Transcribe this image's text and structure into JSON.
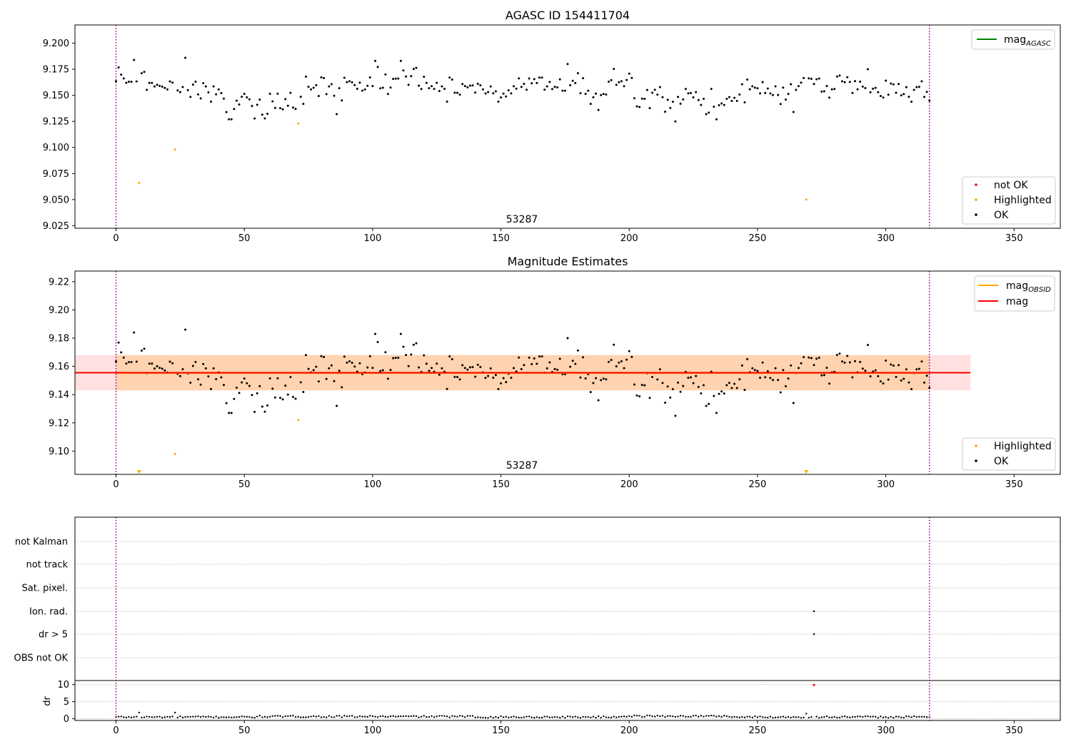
{
  "chart_data": [
    {
      "type": "scatter",
      "title": "AGASC ID 154411704",
      "annotation": "53287",
      "xlim": [
        -16,
        368
      ],
      "ylim": [
        9.0225,
        9.2175
      ],
      "x_ticks": [
        0,
        50,
        100,
        150,
        200,
        250,
        300,
        350
      ],
      "y_ticks": [
        9.025,
        9.05,
        9.075,
        9.1,
        9.125,
        9.15,
        9.175,
        9.2
      ],
      "y_tick_labels": [
        "9.025",
        "9.050",
        "9.075",
        "9.100",
        "9.125",
        "9.150",
        "9.175",
        "9.200"
      ],
      "vlines": [
        0,
        317
      ],
      "line_legend": [
        {
          "label": "mag",
          "sub": "AGASC",
          "color": "#008000"
        }
      ],
      "point_legend": [
        {
          "label": "not OK",
          "color": "#ff0000"
        },
        {
          "label": "Highlighted",
          "color": "#ffa500"
        },
        {
          "label": "OK",
          "color": "#000000"
        }
      ],
      "highlighted": [
        [
          9,
          9.066
        ],
        [
          23,
          9.098
        ],
        [
          71,
          9.123
        ],
        [
          269,
          9.05
        ]
      ],
      "ok_profile": [
        [
          0,
          9.175
        ],
        [
          5,
          9.168
        ],
        [
          10,
          9.17
        ],
        [
          15,
          9.16
        ],
        [
          20,
          9.158
        ],
        [
          25,
          9.162
        ],
        [
          30,
          9.156
        ],
        [
          35,
          9.152
        ],
        [
          40,
          9.145
        ],
        [
          45,
          9.138
        ],
        [
          50,
          9.142
        ],
        [
          55,
          9.14
        ],
        [
          60,
          9.141
        ],
        [
          65,
          9.138
        ],
        [
          70,
          9.143
        ],
        [
          75,
          9.157
        ],
        [
          80,
          9.16
        ],
        [
          85,
          9.152
        ],
        [
          90,
          9.156
        ],
        [
          95,
          9.162
        ],
        [
          100,
          9.163
        ],
        [
          105,
          9.162
        ],
        [
          110,
          9.168
        ],
        [
          115,
          9.17
        ],
        [
          120,
          9.163
        ],
        [
          125,
          9.16
        ],
        [
          130,
          9.158
        ],
        [
          135,
          9.16
        ],
        [
          140,
          9.158
        ],
        [
          145,
          9.155
        ],
        [
          150,
          9.152
        ],
        [
          155,
          9.16
        ],
        [
          160,
          9.165
        ],
        [
          165,
          9.165
        ],
        [
          170,
          9.16
        ],
        [
          175,
          9.157
        ],
        [
          180,
          9.162
        ],
        [
          185,
          9.15
        ],
        [
          190,
          9.155
        ],
        [
          195,
          9.162
        ],
        [
          200,
          9.16
        ],
        [
          205,
          9.145
        ],
        [
          210,
          9.15
        ],
        [
          215,
          9.138
        ],
        [
          220,
          9.147
        ],
        [
          225,
          9.148
        ],
        [
          230,
          9.148
        ],
        [
          235,
          9.142
        ],
        [
          240,
          9.148
        ],
        [
          245,
          9.152
        ],
        [
          250,
          9.156
        ],
        [
          255,
          9.155
        ],
        [
          260,
          9.152
        ],
        [
          265,
          9.16
        ],
        [
          270,
          9.165
        ],
        [
          275,
          9.158
        ],
        [
          280,
          9.162
        ],
        [
          285,
          9.164
        ],
        [
          290,
          9.16
        ],
        [
          295,
          9.157
        ],
        [
          300,
          9.155
        ],
        [
          305,
          9.152
        ],
        [
          310,
          9.158
        ],
        [
          317,
          9.155
        ]
      ],
      "ok_extremes": [
        [
          7,
          9.184
        ],
        [
          27,
          9.186
        ],
        [
          101,
          9.183
        ],
        [
          111,
          9.183
        ],
        [
          44,
          9.127
        ],
        [
          45,
          9.127
        ],
        [
          218,
          9.125
        ],
        [
          234,
          9.127
        ],
        [
          230,
          9.132
        ],
        [
          86,
          9.132
        ],
        [
          176,
          9.18
        ],
        [
          264,
          9.134
        ],
        [
          188,
          9.136
        ]
      ]
    },
    {
      "type": "scatter",
      "title": "Magnitude Estimates",
      "annotation": "53287",
      "xlim": [
        -16,
        368
      ],
      "ylim": [
        9.0835,
        9.2275
      ],
      "x_ticks": [
        0,
        50,
        100,
        150,
        200,
        250,
        300,
        350
      ],
      "y_ticks": [
        9.1,
        9.12,
        9.14,
        9.16,
        9.18,
        9.2,
        9.22
      ],
      "y_tick_labels": [
        "9.10",
        "9.12",
        "9.14",
        "9.16",
        "9.18",
        "9.20",
        "9.22"
      ],
      "vlines": [
        0,
        317
      ],
      "mag": 9.1555,
      "mag_band": [
        9.143,
        9.168
      ],
      "mag_obsid": 9.1552,
      "mag_obsid_band": [
        9.143,
        9.168
      ],
      "line_legend": [
        {
          "label": "mag",
          "sub": "OBSID",
          "color": "#ffa500"
        },
        {
          "label": "mag",
          "sub": "",
          "color": "#ff0000"
        }
      ],
      "point_legend": [
        {
          "label": "Highlighted",
          "color": "#ffa500"
        },
        {
          "label": "OK",
          "color": "#000000"
        }
      ],
      "highlighted": [
        [
          23,
          9.098
        ],
        [
          71,
          9.122
        ]
      ],
      "lower_limit_markers": [
        9,
        269
      ]
    },
    {
      "type": "scatter",
      "flag_rows": [
        "not Kalman",
        "not track",
        "Sat. pixel.",
        "Ion. rad.",
        "dr > 5",
        "OBS not OK"
      ],
      "flag_points": [
        {
          "row": "Ion. rad.",
          "x": 272
        },
        {
          "row": "dr > 5",
          "x": 272
        }
      ],
      "dr_ylabel": "dr",
      "dr_ylim": [
        -0.5,
        11.2
      ],
      "dr_ticks": [
        0,
        5,
        10
      ],
      "dr_tick_labels": [
        "0",
        "5",
        "10"
      ],
      "dr_outlier": [
        272,
        9.9
      ],
      "dr_small": [
        [
          9,
          1.8
        ],
        [
          23,
          1.8
        ],
        [
          269,
          1.5
        ]
      ],
      "dr_baseline": 0.5,
      "xlim": [
        -16,
        368
      ],
      "x_ticks": [
        0,
        50,
        100,
        150,
        200,
        250,
        300,
        350
      ],
      "vlines": [
        0,
        317
      ]
    }
  ]
}
